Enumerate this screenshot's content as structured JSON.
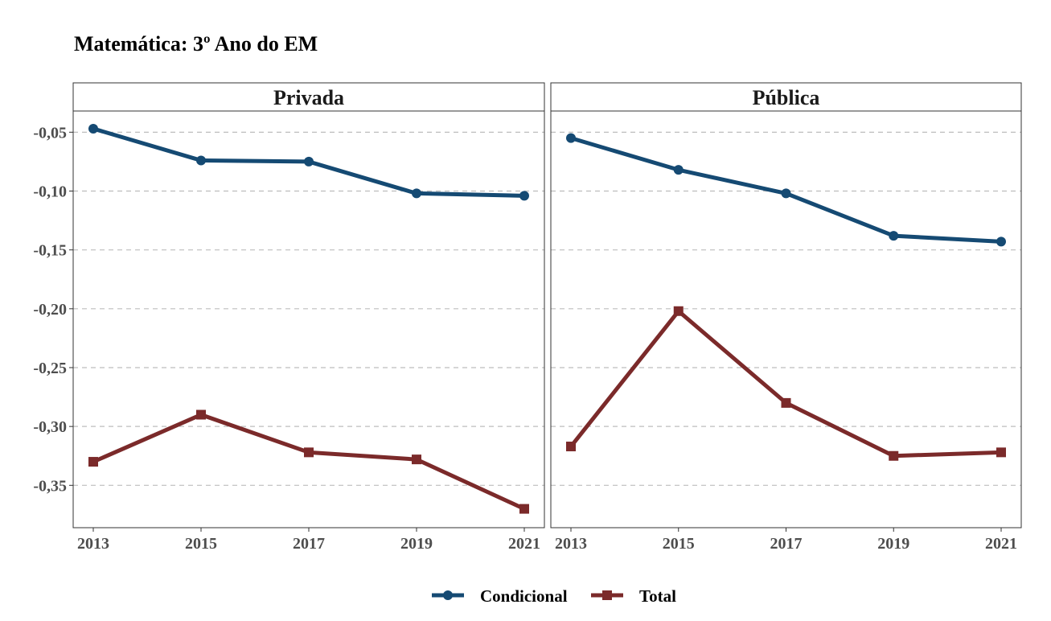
{
  "chart_data": {
    "type": "line",
    "title": "Matemática: 3º Ano do EM",
    "facets": [
      {
        "label": "Privada",
        "series": [
          {
            "name": "Condicional",
            "values": [
              -0.047,
              -0.074,
              -0.075,
              -0.102,
              -0.104
            ]
          },
          {
            "name": "Total",
            "values": [
              -0.33,
              -0.29,
              -0.322,
              -0.328,
              -0.37
            ]
          }
        ]
      },
      {
        "label": "Pública",
        "series": [
          {
            "name": "Condicional",
            "values": [
              -0.055,
              -0.082,
              -0.102,
              -0.138,
              -0.143
            ]
          },
          {
            "name": "Total",
            "values": [
              -0.317,
              -0.202,
              -0.28,
              -0.325,
              -0.322
            ]
          }
        ]
      }
    ],
    "x": [
      "2013",
      "2015",
      "2017",
      "2019",
      "2021"
    ],
    "y_ticks": [
      -0.05,
      -0.1,
      -0.15,
      -0.2,
      -0.25,
      -0.3,
      -0.35
    ],
    "y_tick_labels": [
      "-0,05",
      "-0,10",
      "-0,15",
      "-0,20",
      "-0,25",
      "-0,30",
      "-0,35"
    ],
    "ylim": [
      -0.386,
      -0.032
    ],
    "grid": "horizontal dashed",
    "legend_position": "bottom",
    "legend": [
      {
        "name": "Condicional",
        "color": "#154A73",
        "marker": "circle"
      },
      {
        "name": "Total",
        "color": "#7B2A2A",
        "marker": "square"
      }
    ],
    "xlabel": "",
    "ylabel": ""
  }
}
